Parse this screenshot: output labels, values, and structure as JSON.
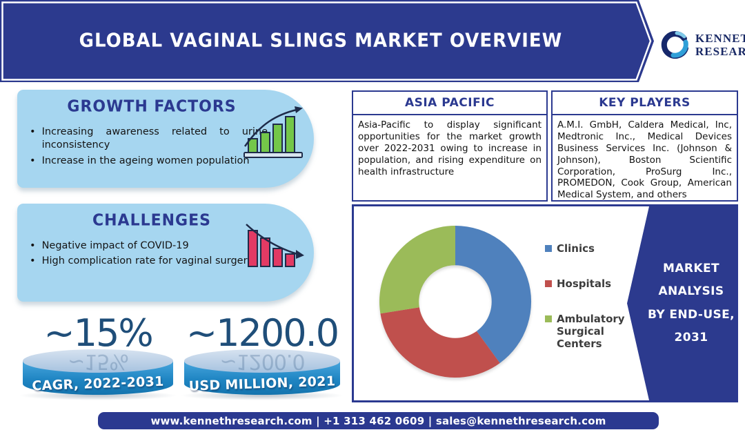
{
  "banner": {
    "title": "GLOBAL VAGINAL SLINGS MARKET OVERVIEW"
  },
  "logo": {
    "line1": "KENNETH",
    "line2": "RESEARCH"
  },
  "growth_factors": {
    "title": "GROWTH FACTORS",
    "bullets": [
      "Increasing awareness related to urine inconsistency",
      "Increase in the ageing women population"
    ],
    "icon": "rising-bar-chart-icon"
  },
  "challenges": {
    "title": "CHALLENGES",
    "bullets": [
      "Negative impact of COVID-19",
      "High complication rate for vaginal surgery"
    ],
    "icon": "declining-bar-chart-icon"
  },
  "metrics": [
    {
      "value": "~15%",
      "label": "CAGR, 2022-2031"
    },
    {
      "value": "~1200.0",
      "label": "USD MILLION, 2021"
    }
  ],
  "asia_pacific": {
    "title": "ASIA PACIFIC",
    "body": "Asia-Pacific to display significant opportunities for the market growth over 2022-2031 owing to increase in population, and rising expenditure on health infrastructure"
  },
  "key_players": {
    "title": "KEY PLAYERS",
    "body": "A.M.I. GmbH, Caldera Medical, Inc, Medtronic Inc., Medical Devices Business Services Inc. (Johnson & Johnson), Boston Scientific Corporation, ProSurg Inc., PROMEDON, Cook Group, American Medical System, and others"
  },
  "chart_data": {
    "type": "pie",
    "subtype": "donut",
    "title": "Market Analysis by End-Use, 2031",
    "series": [
      {
        "name": "Clinics",
        "value": 40,
        "color": "#4F81BD"
      },
      {
        "name": "Hospitals",
        "value": 32.5,
        "color": "#C0504D"
      },
      {
        "name": "Ambulatory Surgical Centers",
        "value": 27.5,
        "color": "#9BBB59"
      }
    ],
    "legend_position": "right",
    "start_angle_deg": 0,
    "direction": "clockwise",
    "donut_hole_ratio": 0.48
  },
  "market_analysis": {
    "label": "MARKET\nANALYSIS\nBY END-USE,\n2031"
  },
  "footer": {
    "text": "www.kennethresearch.com | +1 313 462 0609 | sales@kennethresearch.com"
  },
  "colors": {
    "primary_navy": "#2B3990",
    "card_blue": "#A6D6F0",
    "cylinder_blue": "#2E96D1",
    "number_blue": "#1F4E79",
    "bar_green": "#74C749",
    "bar_red": "#E23A64"
  }
}
